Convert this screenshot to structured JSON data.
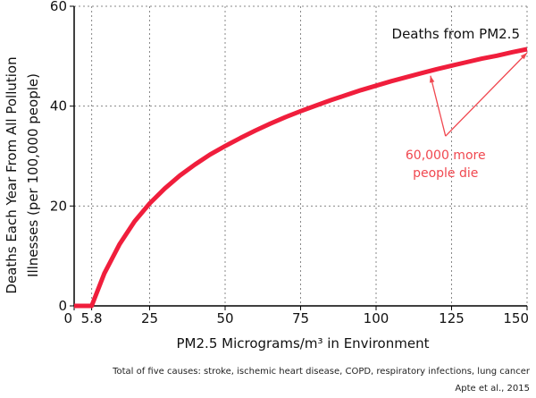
{
  "chart_data": {
    "type": "line",
    "title": "",
    "xlabel": "PM2.5 Micrograms/m³ in Environment",
    "ylabel_line1": "Deaths Each Year From All Pollution",
    "ylabel_line2": "Illnesses (per 100,000 people)",
    "xlim": [
      0,
      150
    ],
    "ylim": [
      0,
      60
    ],
    "x_ticks": [
      0,
      5.8,
      25,
      50,
      75,
      100,
      125,
      150
    ],
    "x_tick_labels": [
      "0",
      "5.8",
      "25",
      "50",
      "75",
      "100",
      "125",
      "150"
    ],
    "y_ticks": [
      0,
      20,
      40,
      60
    ],
    "y_tick_labels": [
      "0",
      "20",
      "40",
      "60"
    ],
    "x_grid": [
      5.8,
      25,
      50,
      75,
      100,
      125,
      150
    ],
    "y_grid": [
      20,
      40,
      60
    ],
    "series": [
      {
        "name": "Deaths from PM2.5",
        "color": "#f01e3c",
        "x": [
          0,
          5.8,
          10,
          15,
          20,
          25,
          30,
          35,
          40,
          45,
          50,
          55,
          60,
          65,
          70,
          75,
          80,
          85,
          90,
          95,
          100,
          105,
          110,
          115,
          120,
          125,
          130,
          135,
          140,
          145,
          150
        ],
        "y": [
          0,
          0,
          6.5,
          12.3,
          16.9,
          20.5,
          23.5,
          26.1,
          28.3,
          30.3,
          32.0,
          33.6,
          35.1,
          36.5,
          37.8,
          39.0,
          40.1,
          41.2,
          42.2,
          43.2,
          44.1,
          45.0,
          45.8,
          46.6,
          47.4,
          48.1,
          48.8,
          49.5,
          50.1,
          50.8,
          51.4
        ]
      }
    ],
    "annotation": {
      "line1": "60,000 more",
      "line2": "people die",
      "color": "#f0474f",
      "arrow_targets": [
        [
          118,
          46.8
        ],
        [
          150,
          51.4
        ]
      ],
      "arrow_origin": [
        123,
        34
      ]
    }
  },
  "footnote_causes": "Total of five causes: stroke, ischemic heart disease, COPD, respiratory infections, lung cancer",
  "footnote_source": "Apte et al., 2015"
}
